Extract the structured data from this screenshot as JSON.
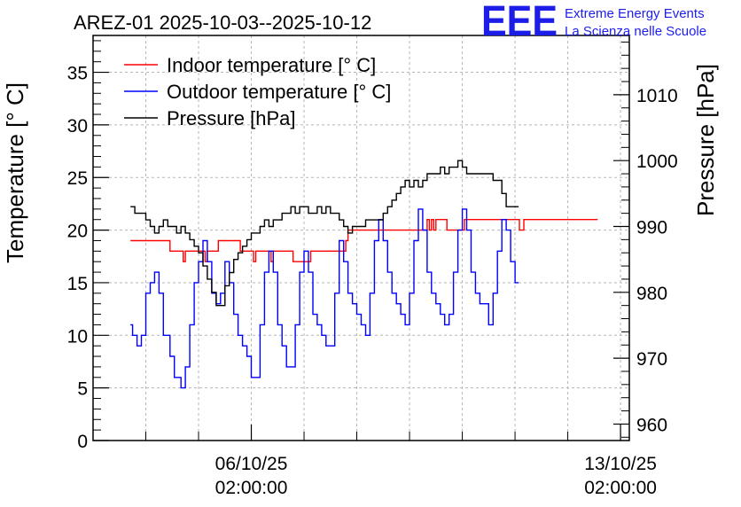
{
  "chart_data": {
    "type": "line",
    "title": "AREZ-01 2025-10-03--2025-10-12",
    "ylabel": "Temperature [° C]",
    "y2label": "Pressure [hPa]",
    "xlabel": "",
    "ylim": [
      0,
      38.5
    ],
    "y2lim": [
      957.5,
      1019
    ],
    "xlim": [
      0,
      244
    ],
    "grid": true,
    "legend_position": "top-left",
    "yticks": [
      0,
      5,
      10,
      15,
      20,
      25,
      30,
      35
    ],
    "y2ticks": [
      960,
      970,
      980,
      990,
      1000,
      1010
    ],
    "xticks": [
      {
        "x": 72,
        "line1": "06/10/25",
        "line2": "02:00:00"
      },
      {
        "x": 240,
        "line1": "13/10/25",
        "line2": "02:00:00"
      }
    ],
    "x_unit": "hours since 2025-10-03 02:00",
    "series": [
      {
        "name": "Indoor temperature [° C]",
        "axis": "left",
        "color": "#ff0000",
        "points": [
          [
            17,
            19
          ],
          [
            34,
            19
          ],
          [
            35,
            18
          ],
          [
            40,
            18
          ],
          [
            41,
            17
          ],
          [
            42,
            18
          ],
          [
            50,
            18
          ],
          [
            51,
            17
          ],
          [
            52,
            18
          ],
          [
            56,
            18
          ],
          [
            57,
            19
          ],
          [
            66,
            19
          ],
          [
            67,
            18
          ],
          [
            72,
            18
          ],
          [
            73,
            17
          ],
          [
            74,
            18
          ],
          [
            80,
            18
          ],
          [
            81,
            17
          ],
          [
            82,
            18
          ],
          [
            90,
            18
          ],
          [
            91,
            17
          ],
          [
            98,
            17
          ],
          [
            99,
            18
          ],
          [
            114,
            18
          ],
          [
            115,
            19
          ],
          [
            116,
            20
          ],
          [
            151,
            20
          ],
          [
            152,
            21
          ],
          [
            153,
            20
          ],
          [
            154,
            21
          ],
          [
            155,
            20
          ],
          [
            156,
            21
          ],
          [
            160,
            21
          ],
          [
            161,
            20
          ],
          [
            168,
            20
          ],
          [
            169,
            21
          ],
          [
            193,
            21
          ],
          [
            194,
            20
          ],
          [
            196,
            21
          ],
          [
            228,
            21
          ]
        ]
      },
      {
        "name": "Outdoor temperature [° C]",
        "axis": "left",
        "color": "#0000ff",
        "points": [
          [
            17,
            11
          ],
          [
            18,
            10
          ],
          [
            20,
            9
          ],
          [
            22,
            10
          ],
          [
            24,
            14
          ],
          [
            26,
            15
          ],
          [
            28,
            16
          ],
          [
            30,
            14
          ],
          [
            32,
            10
          ],
          [
            35,
            8
          ],
          [
            37,
            6
          ],
          [
            39,
            6
          ],
          [
            40,
            5
          ],
          [
            42,
            7
          ],
          [
            44,
            11
          ],
          [
            46,
            15
          ],
          [
            48,
            17
          ],
          [
            50,
            19
          ],
          [
            52,
            17
          ],
          [
            54,
            14
          ],
          [
            56,
            13
          ],
          [
            58,
            14
          ],
          [
            60,
            17
          ],
          [
            62,
            15
          ],
          [
            64,
            12
          ],
          [
            66,
            10
          ],
          [
            68,
            9
          ],
          [
            70,
            8
          ],
          [
            72,
            6
          ],
          [
            74,
            6
          ],
          [
            76,
            11
          ],
          [
            78,
            16
          ],
          [
            80,
            18
          ],
          [
            82,
            16
          ],
          [
            84,
            11
          ],
          [
            86,
            9
          ],
          [
            88,
            7
          ],
          [
            90,
            7
          ],
          [
            92,
            11
          ],
          [
            94,
            16
          ],
          [
            96,
            18
          ],
          [
            98,
            16
          ],
          [
            100,
            12
          ],
          [
            102,
            11
          ],
          [
            104,
            10
          ],
          [
            106,
            9
          ],
          [
            108,
            9
          ],
          [
            110,
            14
          ],
          [
            112,
            19
          ],
          [
            114,
            17
          ],
          [
            116,
            14
          ],
          [
            118,
            13
          ],
          [
            120,
            12
          ],
          [
            122,
            11
          ],
          [
            124,
            10
          ],
          [
            126,
            14
          ],
          [
            128,
            19
          ],
          [
            130,
            21
          ],
          [
            132,
            19
          ],
          [
            134,
            16
          ],
          [
            136,
            14
          ],
          [
            138,
            13
          ],
          [
            140,
            12
          ],
          [
            142,
            11
          ],
          [
            144,
            14
          ],
          [
            146,
            19
          ],
          [
            148,
            22
          ],
          [
            150,
            20
          ],
          [
            152,
            16
          ],
          [
            154,
            14
          ],
          [
            156,
            13
          ],
          [
            158,
            12
          ],
          [
            160,
            11
          ],
          [
            162,
            12
          ],
          [
            164,
            16
          ],
          [
            166,
            20
          ],
          [
            168,
            22
          ],
          [
            170,
            20
          ],
          [
            172,
            16
          ],
          [
            174,
            14
          ],
          [
            176,
            13
          ],
          [
            178,
            13
          ],
          [
            180,
            11
          ],
          [
            182,
            14
          ],
          [
            184,
            18
          ],
          [
            186,
            21
          ],
          [
            188,
            20
          ],
          [
            190,
            17
          ],
          [
            192,
            15
          ]
        ]
      },
      {
        "name": "Pressure [hPa]",
        "axis": "right",
        "color": "#000000",
        "points": [
          [
            17,
            993
          ],
          [
            19,
            992
          ],
          [
            22,
            992
          ],
          [
            24,
            991
          ],
          [
            26,
            990
          ],
          [
            28,
            989
          ],
          [
            30,
            990
          ],
          [
            32,
            991
          ],
          [
            34,
            990
          ],
          [
            36,
            990
          ],
          [
            38,
            989
          ],
          [
            40,
            990
          ],
          [
            42,
            989
          ],
          [
            44,
            988
          ],
          [
            46,
            987
          ],
          [
            48,
            986
          ],
          [
            50,
            984
          ],
          [
            52,
            982
          ],
          [
            54,
            980
          ],
          [
            56,
            978
          ],
          [
            58,
            978
          ],
          [
            60,
            981
          ],
          [
            62,
            983
          ],
          [
            64,
            985
          ],
          [
            66,
            986
          ],
          [
            68,
            987
          ],
          [
            70,
            988
          ],
          [
            72,
            989
          ],
          [
            74,
            989
          ],
          [
            76,
            990
          ],
          [
            78,
            991
          ],
          [
            80,
            990
          ],
          [
            82,
            991
          ],
          [
            84,
            991
          ],
          [
            86,
            992
          ],
          [
            88,
            992
          ],
          [
            90,
            993
          ],
          [
            92,
            992
          ],
          [
            94,
            993
          ],
          [
            96,
            993
          ],
          [
            98,
            992
          ],
          [
            100,
            992
          ],
          [
            102,
            993
          ],
          [
            104,
            992
          ],
          [
            106,
            993
          ],
          [
            108,
            992
          ],
          [
            110,
            992
          ],
          [
            112,
            991
          ],
          [
            114,
            990
          ],
          [
            116,
            989
          ],
          [
            118,
            990
          ],
          [
            120,
            990
          ],
          [
            122,
            990
          ],
          [
            124,
            991
          ],
          [
            126,
            991
          ],
          [
            128,
            991
          ],
          [
            130,
            991
          ],
          [
            132,
            992
          ],
          [
            134,
            993
          ],
          [
            136,
            994
          ],
          [
            138,
            995
          ],
          [
            140,
            996
          ],
          [
            142,
            997
          ],
          [
            144,
            996
          ],
          [
            146,
            997
          ],
          [
            148,
            996
          ],
          [
            150,
            997
          ],
          [
            152,
            998
          ],
          [
            154,
            998
          ],
          [
            156,
            998
          ],
          [
            158,
            999
          ],
          [
            160,
            998
          ],
          [
            162,
            999
          ],
          [
            164,
            999
          ],
          [
            166,
            1000
          ],
          [
            168,
            999
          ],
          [
            170,
            998
          ],
          [
            172,
            998
          ],
          [
            174,
            998
          ],
          [
            176,
            998
          ],
          [
            178,
            998
          ],
          [
            180,
            998
          ],
          [
            182,
            997
          ],
          [
            184,
            997
          ],
          [
            186,
            995
          ],
          [
            188,
            993
          ],
          [
            190,
            993
          ],
          [
            192,
            993
          ]
        ]
      }
    ]
  },
  "logo": {
    "mark": "EEE",
    "line1": "Extreme Energy Events",
    "line2": "La Scienza nelle Scuole"
  }
}
